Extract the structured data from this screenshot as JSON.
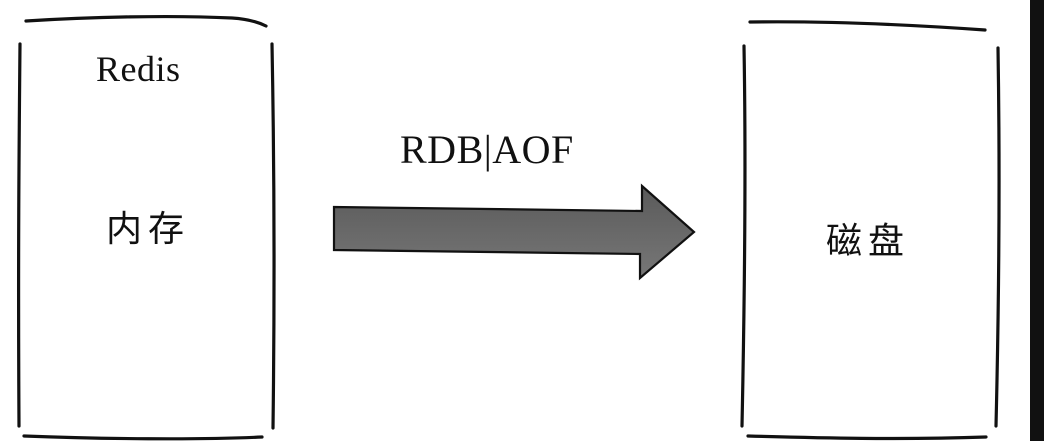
{
  "source": {
    "title": "Redis",
    "label": "内存"
  },
  "arrow": {
    "label": "RDB|AOF"
  },
  "target": {
    "label": "磁盘"
  },
  "colors": {
    "arrow_fill": "#6b6b6b",
    "stroke": "#111111",
    "edge_bar": "#111111"
  }
}
